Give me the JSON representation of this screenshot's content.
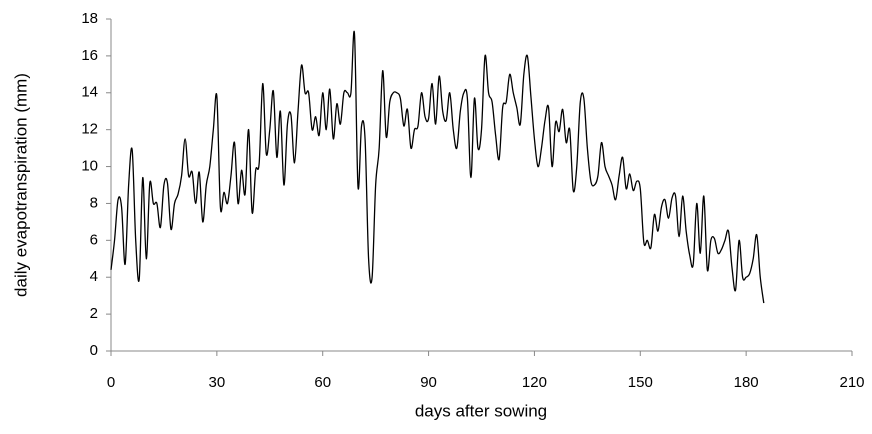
{
  "chart_data": {
    "type": "line",
    "xlabel": "days after sowing",
    "ylabel": "daily evapotranspiration (mm)",
    "x": [
      0,
      1,
      2,
      3,
      4,
      5,
      6,
      7,
      8,
      9,
      10,
      11,
      12,
      13,
      14,
      15,
      16,
      17,
      18,
      19,
      20,
      21,
      22,
      23,
      24,
      25,
      26,
      27,
      28,
      29,
      30,
      31,
      32,
      33,
      34,
      35,
      36,
      37,
      38,
      39,
      40,
      41,
      42,
      43,
      44,
      45,
      46,
      47,
      48,
      49,
      50,
      51,
      52,
      53,
      54,
      55,
      56,
      57,
      58,
      59,
      60,
      61,
      62,
      63,
      64,
      65,
      66,
      67,
      68,
      69,
      70,
      71,
      72,
      73,
      74,
      75,
      76,
      77,
      78,
      79,
      80,
      81,
      82,
      83,
      84,
      85,
      86,
      87,
      88,
      89,
      90,
      91,
      92,
      93,
      94,
      95,
      96,
      97,
      98,
      99,
      100,
      101,
      102,
      103,
      104,
      105,
      106,
      107,
      108,
      109,
      110,
      111,
      112,
      113,
      114,
      115,
      116,
      117,
      118,
      119,
      120,
      121,
      122,
      123,
      124,
      125,
      126,
      127,
      128,
      129,
      130,
      131,
      132,
      133,
      134,
      135,
      136,
      137,
      138,
      139,
      140,
      141,
      142,
      143,
      144,
      145,
      146,
      147,
      148,
      149,
      150,
      151,
      152,
      153,
      154,
      155,
      156,
      157,
      158,
      159,
      160,
      161,
      162,
      163,
      164,
      165,
      166,
      167,
      168,
      169,
      170,
      171,
      172,
      173,
      174,
      175,
      176,
      177,
      178,
      179,
      180,
      181,
      182,
      183,
      184,
      185
    ],
    "series": [
      {
        "color": "#000000",
        "values": [
          4.4,
          6,
          8.2,
          7.8,
          4.7,
          9,
          10.9,
          6,
          3.9,
          9.4,
          5,
          9.1,
          8,
          8,
          6.7,
          9,
          9.1,
          6.6,
          8,
          8.5,
          9.5,
          11.5,
          9.5,
          9.7,
          8,
          9.7,
          7,
          9,
          10,
          12,
          13.8,
          7.8,
          8.6,
          8,
          9.5,
          11.3,
          8,
          9.8,
          8.5,
          12,
          7.5,
          9.8,
          10.2,
          14.5,
          10.7,
          12,
          14.1,
          10.5,
          13,
          9,
          12.3,
          12.8,
          10.2,
          13,
          15.5,
          14,
          14,
          12,
          12.7,
          11.7,
          14,
          12,
          14.2,
          11.5,
          13.4,
          12.3,
          14,
          14,
          14,
          17.2,
          8.9,
          12.2,
          11.5,
          5,
          4,
          9,
          11,
          15.2,
          11.6,
          13.5,
          14,
          14,
          13.7,
          12.2,
          13.1,
          11,
          12,
          12.2,
          14,
          12.7,
          12.6,
          14.5,
          12.3,
          14.9,
          13,
          12.5,
          14,
          12,
          11,
          13,
          14,
          13.7,
          9.4,
          13.7,
          11,
          12,
          16,
          14,
          13.5,
          11.7,
          10.4,
          13.2,
          13.5,
          15,
          14,
          13.2,
          12.3,
          15,
          16,
          13.8,
          11.5,
          10,
          11,
          12.5,
          13.2,
          10,
          12.4,
          11.9,
          13.1,
          11.3,
          12,
          8.7,
          10,
          13.5,
          13.7,
          11,
          9.2,
          9,
          9.5,
          11.3,
          10,
          9.5,
          9,
          8.2,
          9.5,
          10.5,
          8.8,
          9.6,
          8.7,
          9.2,
          8.8,
          5.9,
          6,
          5.6,
          7.4,
          6.5,
          7.8,
          8.2,
          7.2,
          8.3,
          8.4,
          6.2,
          8.4,
          6.5,
          5.2,
          4.7,
          8,
          5.3,
          8.4,
          4.4,
          6,
          6.1,
          5.3,
          5.5,
          6,
          6.5,
          4.5,
          3.3,
          6,
          4,
          4,
          4.2,
          5,
          6.3,
          4,
          2.6
        ]
      }
    ],
    "xlim": [
      0,
      210
    ],
    "xticks": [
      0,
      30,
      60,
      90,
      120,
      150,
      180,
      210
    ],
    "ylim": [
      0,
      18
    ],
    "yticks": [
      0,
      2,
      4,
      6,
      8,
      10,
      12,
      14,
      16,
      18
    ]
  }
}
